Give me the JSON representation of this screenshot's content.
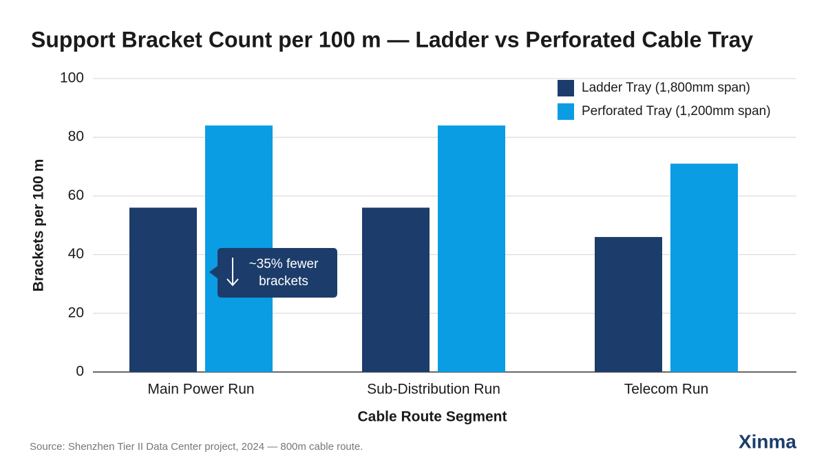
{
  "chart_data": {
    "type": "bar",
    "title": "Support Bracket Count per 100 m — Ladder vs Perforated Cable Tray",
    "x_label": "Cable Route Segment",
    "y_label": "Brackets per 100 m",
    "categories": [
      "Main Power Run",
      "Sub-Distribution Run",
      "Telecom Run"
    ],
    "series": [
      {
        "name": "Ladder Tray (1,800mm span)",
        "color": "#1c3d6b",
        "values": [
          56,
          56,
          46
        ]
      },
      {
        "name": "Perforated Tray (1,200mm span)",
        "color": "#0a9de3",
        "values": [
          84,
          84,
          71
        ]
      }
    ],
    "ylim": [
      0,
      100
    ],
    "yticks": [
      0,
      20,
      40,
      60,
      80,
      100
    ],
    "grid": true,
    "legend": "top-right",
    "annotation": {
      "lines": [
        "~35% fewer",
        "brackets"
      ]
    },
    "source": "Source: Shenzhen Tier II Data Center project, 2024 — 800m cable route.",
    "brand": "Xinma"
  }
}
